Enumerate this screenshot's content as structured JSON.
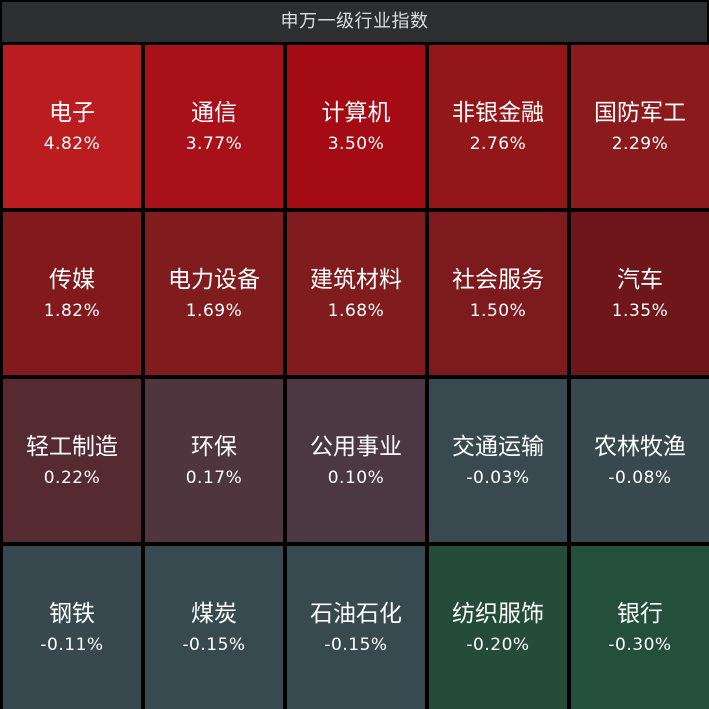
{
  "chart_data": {
    "type": "heatmap",
    "title": "申万一级行业指数",
    "rows": 4,
    "columns": 5,
    "cells": [
      {
        "name": "电子",
        "value": 4.82,
        "label": "4.82%",
        "color": "#bb1c1f"
      },
      {
        "name": "通信",
        "value": 3.77,
        "label": "3.77%",
        "color": "#a9111a"
      },
      {
        "name": "计算机",
        "value": 3.5,
        "label": "3.50%",
        "color": "#a40b14"
      },
      {
        "name": "非银金融",
        "value": 2.76,
        "label": "2.76%",
        "color": "#931619"
      },
      {
        "name": "国防军工",
        "value": 2.29,
        "label": "2.29%",
        "color": "#8b1a1c"
      },
      {
        "name": "传媒",
        "value": 1.82,
        "label": "1.82%",
        "color": "#821a1d"
      },
      {
        "name": "电力设备",
        "value": 1.69,
        "label": "1.69%",
        "color": "#811c1e"
      },
      {
        "name": "建筑材料",
        "value": 1.68,
        "label": "1.68%",
        "color": "#801b1e"
      },
      {
        "name": "社会服务",
        "value": 1.5,
        "label": "1.50%",
        "color": "#7c1a1d"
      },
      {
        "name": "汽车",
        "value": 1.35,
        "label": "1.35%",
        "color": "#6e1619"
      },
      {
        "name": "轻工制造",
        "value": 0.22,
        "label": "0.22%",
        "color": "#562a31"
      },
      {
        "name": "环保",
        "value": 0.17,
        "label": "0.17%",
        "color": "#4f353e"
      },
      {
        "name": "公用事业",
        "value": 0.1,
        "label": "0.10%",
        "color": "#4b3842"
      },
      {
        "name": "交通运输",
        "value": -0.03,
        "label": "-0.03%",
        "color": "#384a50"
      },
      {
        "name": "农林牧渔",
        "value": -0.08,
        "label": "-0.08%",
        "color": "#37494f"
      },
      {
        "name": "钢铁",
        "value": -0.11,
        "label": "-0.11%",
        "color": "#37494f"
      },
      {
        "name": "煤炭",
        "value": -0.15,
        "label": "-0.15%",
        "color": "#374a4f"
      },
      {
        "name": "石油石化",
        "value": -0.15,
        "label": "-0.15%",
        "color": "#374a4f"
      },
      {
        "name": "纺织服饰",
        "value": -0.2,
        "label": "-0.20%",
        "color": "#244c39"
      },
      {
        "name": "银行",
        "value": -0.3,
        "label": "-0.30%",
        "color": "#234f3b"
      }
    ]
  },
  "colors": {
    "background": "#000000",
    "title_bar": "#2c2e30",
    "title_text": "#dadde0",
    "tile_text": "#ffffff"
  }
}
